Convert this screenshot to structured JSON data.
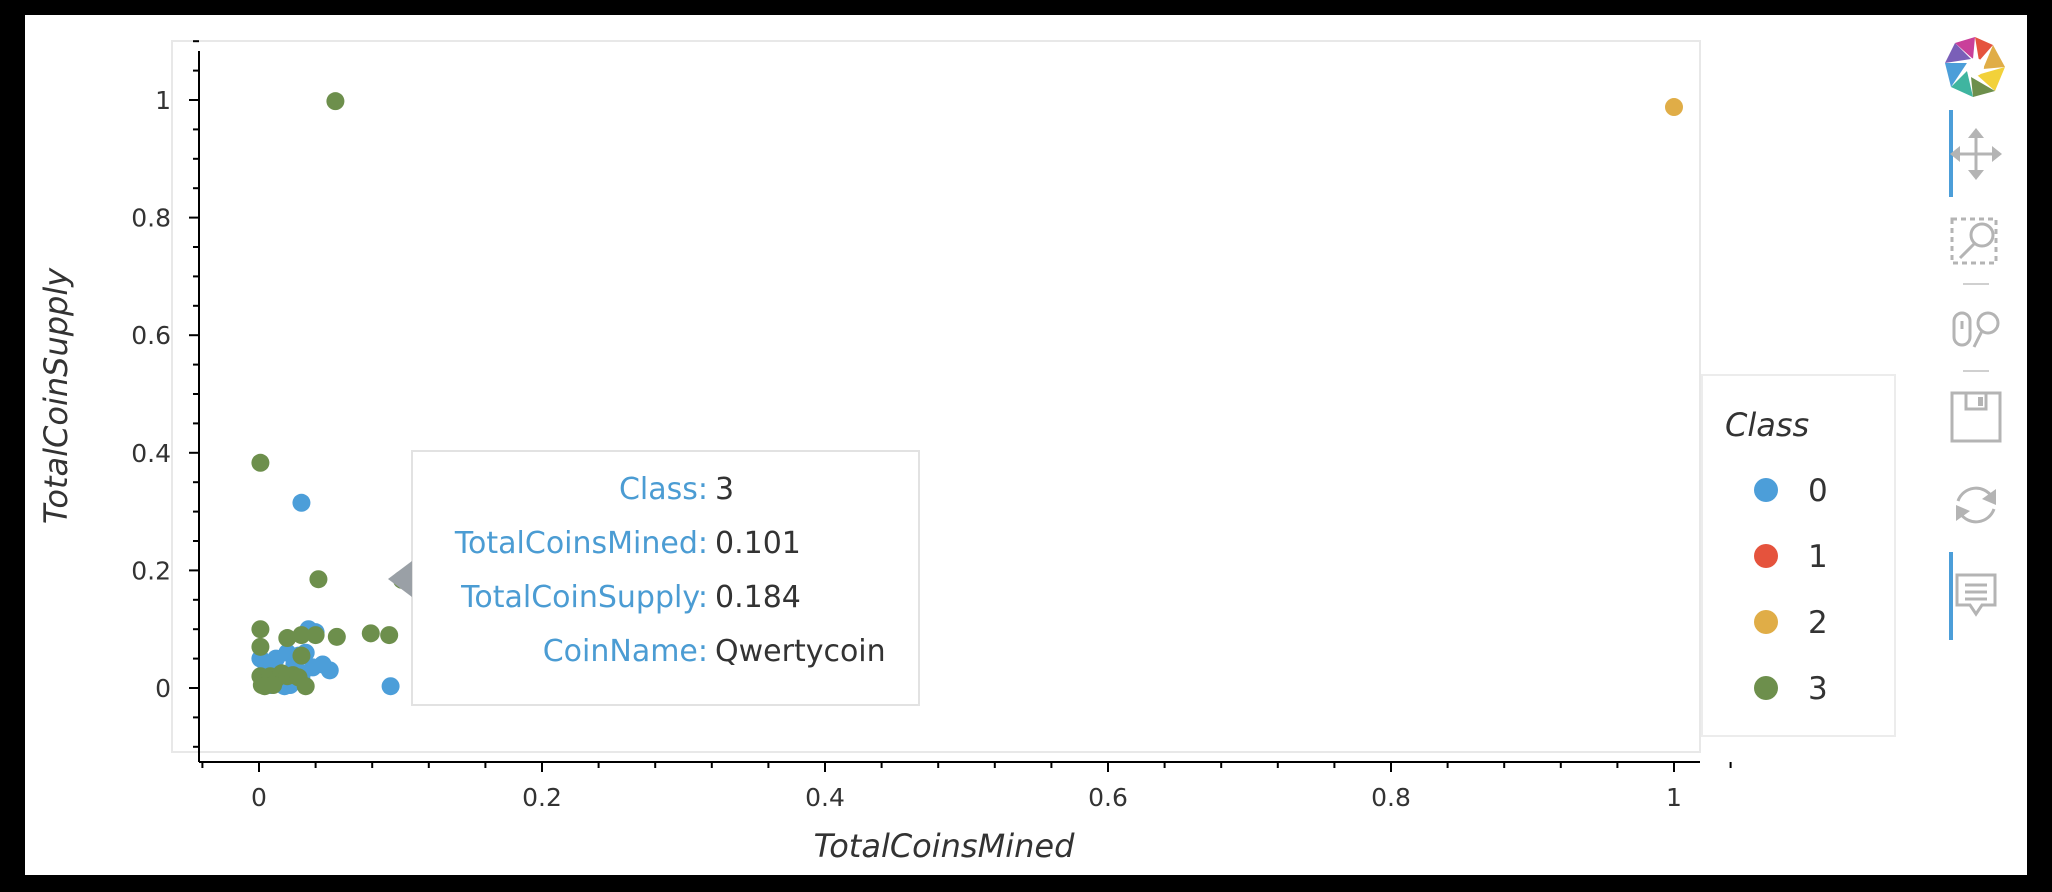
{
  "chart_data": {
    "type": "scatter",
    "xlabel": "TotalCoinsMined",
    "ylabel": "TotalCoinSupply",
    "xlim": [
      -0.04,
      1.04
    ],
    "ylim": [
      -0.1,
      1.1
    ],
    "x_ticks": [
      0,
      0.2,
      0.4,
      0.6,
      0.8,
      1
    ],
    "x_tick_labels": [
      "0",
      "0.2",
      "0.4",
      "0.6",
      "0.8",
      "1"
    ],
    "y_ticks": [
      0,
      0.2,
      0.4,
      0.6,
      0.8,
      1
    ],
    "y_tick_labels": [
      "0",
      "0.2",
      "0.4",
      "0.6",
      "0.8",
      "1"
    ],
    "grid": false,
    "legend": {
      "title": "Class",
      "placement": "right",
      "entries": [
        {
          "label": "0",
          "color": "#4c9ed9"
        },
        {
          "label": "1",
          "color": "#e5533d"
        },
        {
          "label": "2",
          "color": "#e0ad47"
        },
        {
          "label": "3",
          "color": "#6d8f4c"
        }
      ]
    },
    "series": [
      {
        "name": "0",
        "color": "#4c9ed9",
        "points": [
          [
            0.03,
            0.315
          ],
          [
            0.093,
            0.003
          ],
          [
            0.001,
            0.05
          ],
          [
            0.005,
            0.04
          ],
          [
            0.01,
            0.03
          ],
          [
            0.012,
            0.05
          ],
          [
            0.015,
            0.02
          ],
          [
            0.02,
            0.01
          ],
          [
            0.025,
            0.04
          ],
          [
            0.03,
            0.02
          ],
          [
            0.035,
            0.1
          ],
          [
            0.04,
            0.095
          ],
          [
            0.045,
            0.04
          ],
          [
            0.05,
            0.03
          ],
          [
            0.008,
            0.005
          ],
          [
            0.018,
            0.003
          ],
          [
            0.022,
            0.005
          ],
          [
            0.028,
            0.055
          ],
          [
            0.033,
            0.06
          ],
          [
            0.003,
            0.015
          ],
          [
            0.038,
            0.035
          ],
          [
            0.012,
            0.01
          ],
          [
            0.027,
            0.03
          ],
          [
            0.02,
            0.06
          ]
        ]
      },
      {
        "name": "1",
        "color": "#e5533d",
        "points": []
      },
      {
        "name": "2",
        "color": "#e0ad47",
        "points": [
          [
            1.0,
            0.988
          ]
        ]
      },
      {
        "name": "3",
        "color": "#6d8f4c",
        "points": [
          [
            0.054,
            0.998
          ],
          [
            0.001,
            0.383
          ],
          [
            0.042,
            0.185
          ],
          [
            0.101,
            0.184
          ],
          [
            0.001,
            0.1
          ],
          [
            0.001,
            0.07
          ],
          [
            0.02,
            0.085
          ],
          [
            0.03,
            0.09
          ],
          [
            0.04,
            0.09
          ],
          [
            0.079,
            0.093
          ],
          [
            0.092,
            0.09
          ],
          [
            0.055,
            0.087
          ],
          [
            0.03,
            0.055
          ],
          [
            0.001,
            0.02
          ],
          [
            0.002,
            0.005
          ],
          [
            0.005,
            0.01
          ],
          [
            0.008,
            0.02
          ],
          [
            0.012,
            0.015
          ],
          [
            0.016,
            0.025
          ],
          [
            0.02,
            0.02
          ],
          [
            0.024,
            0.022
          ],
          [
            0.028,
            0.018
          ],
          [
            0.033,
            0.003
          ],
          [
            0.004,
            0.003
          ],
          [
            0.01,
            0.005
          ]
        ]
      }
    ],
    "hover": {
      "x": 0.101,
      "y": 0.184
    }
  },
  "tooltip": {
    "rows": [
      {
        "key": "Class:",
        "value": "3"
      },
      {
        "key": "TotalCoinsMined:",
        "value": "0.101"
      },
      {
        "key": "TotalCoinSupply:",
        "value": "0.184"
      },
      {
        "key": "CoinName:",
        "value": "Qwertycoin"
      }
    ]
  },
  "toolbar": {
    "items": [
      {
        "name": "bokeh-logo-icon",
        "active": false
      },
      {
        "name": "pan-tool-icon",
        "active": true
      },
      {
        "name": "box-zoom-tool-icon",
        "active": false
      },
      {
        "name": "wheel-zoom-tool-icon",
        "active": false
      },
      {
        "name": "save-tool-icon",
        "active": false
      },
      {
        "name": "reset-tool-icon",
        "active": false
      },
      {
        "name": "hover-tool-icon",
        "active": true
      }
    ]
  }
}
